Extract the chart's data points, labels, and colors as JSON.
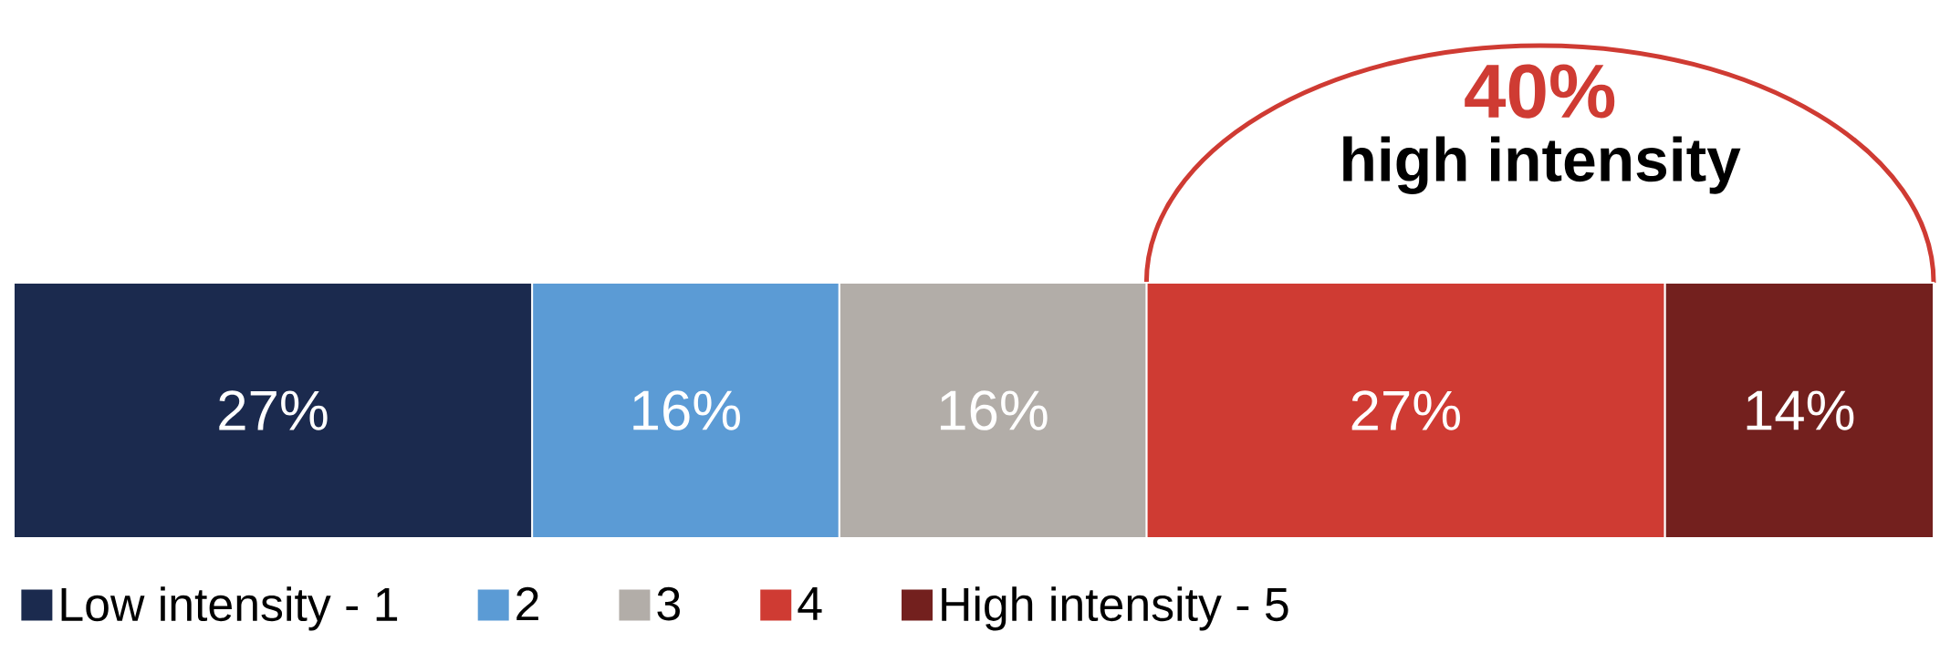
{
  "chart_data": {
    "type": "bar",
    "orientation": "horizontal",
    "stacked": true,
    "categories": [
      null
    ],
    "legend": "bottom",
    "series": [
      {
        "name": "Low intensity - 1",
        "color": "#1b2a4e",
        "values": [
          27
        ],
        "value_labels": [
          "27%"
        ]
      },
      {
        "name": "2",
        "color": "#5b9bd5",
        "values": [
          16
        ],
        "value_labels": [
          "16%"
        ]
      },
      {
        "name": "3",
        "color": "#b2ada8",
        "values": [
          16
        ],
        "value_labels": [
          "16%"
        ]
      },
      {
        "name": "4",
        "color": "#cf3b33",
        "values": [
          27
        ],
        "value_labels": [
          "27%"
        ]
      },
      {
        "name": "High intensity - 5",
        "color": "#73201e",
        "values": [
          14
        ],
        "value_labels": [
          "14%"
        ]
      }
    ],
    "annotations": [
      "40%",
      "high intensity"
    ]
  }
}
